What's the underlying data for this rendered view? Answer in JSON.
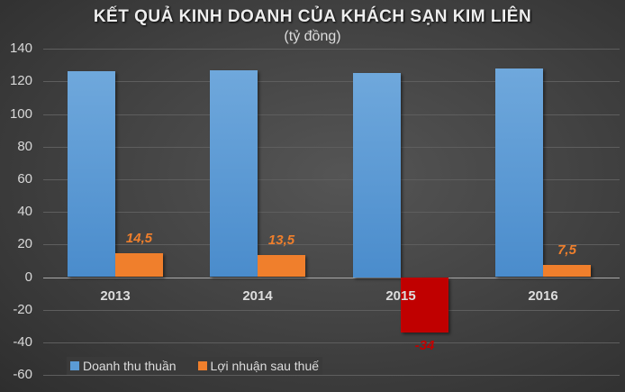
{
  "chart_data": {
    "type": "bar",
    "title": "KẾT QUẢ KINH DOANH CỦA KHÁCH SẠN KIM LIÊN",
    "subtitle": "(tỷ đồng)",
    "xlabel": "",
    "ylabel": "",
    "ylim": [
      -60,
      140
    ],
    "yticks": [
      "140",
      "120",
      "100",
      "80",
      "60",
      "40",
      "20",
      "0",
      "-20",
      "-40",
      "-60"
    ],
    "categories": [
      "2013",
      "2014",
      "2015",
      "2016"
    ],
    "series": [
      {
        "name": "Doanh thu thuần",
        "color": "#5b9bd5",
        "values": [
          126,
          127,
          125,
          128
        ]
      },
      {
        "name": "Lợi nhuận sau thuế",
        "color": "#f07f2c",
        "values": [
          14.5,
          13.5,
          -34,
          7.5
        ],
        "data_labels": [
          "14,5",
          "13,5",
          "-34",
          "7,5"
        ],
        "negative_color": "#c00000"
      }
    ],
    "grid": true,
    "legend_position": "bottom-left"
  }
}
